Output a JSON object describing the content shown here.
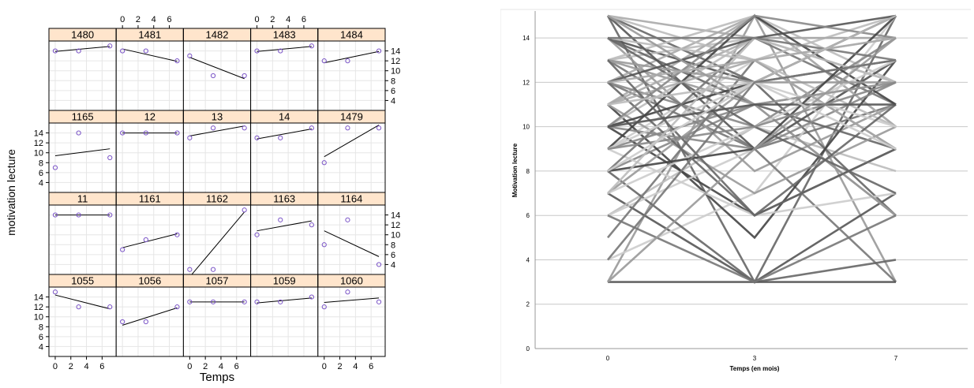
{
  "colors": {
    "strip_bg": "#ffe5cc",
    "point": "#7b55c7",
    "grid_left": "#e6e6e6",
    "grid_right": "#c8c8c8"
  },
  "chart_data": [
    {
      "type": "scatter",
      "layout": "trellis-4x5",
      "xlabel": "Temps",
      "ylabel": "motivation lecture",
      "x_ticks": [
        0,
        2,
        4,
        6
      ],
      "y_ticks": [
        4,
        6,
        8,
        10,
        12,
        14
      ],
      "xlim": [
        -0.4,
        7.4
      ],
      "ylim": [
        2,
        16
      ],
      "panels": [
        {
          "id": "1480",
          "x": [
            0,
            3,
            7
          ],
          "y": [
            14,
            14,
            15
          ],
          "fit": [
            13.9,
            14.9
          ]
        },
        {
          "id": "1481",
          "x": [
            0,
            3,
            7
          ],
          "y": [
            14,
            14,
            12
          ],
          "fit": [
            14.4,
            11.9
          ]
        },
        {
          "id": "1482",
          "x": [
            0,
            3,
            7
          ],
          "y": [
            13,
            9,
            9
          ],
          "fit": [
            12.7,
            8.4
          ]
        },
        {
          "id": "1483",
          "x": [
            0,
            3,
            7
          ],
          "y": [
            14,
            14,
            15
          ],
          "fit": [
            13.9,
            14.9
          ]
        },
        {
          "id": "1484",
          "x": [
            0,
            3,
            7
          ],
          "y": [
            12,
            12,
            14
          ],
          "fit": [
            11.6,
            13.9
          ]
        },
        {
          "id": "1165",
          "x": [
            0,
            3,
            7
          ],
          "y": [
            7,
            14,
            9
          ],
          "fit": [
            9.4,
            10.8
          ]
        },
        {
          "id": "12",
          "x": [
            0,
            3,
            7
          ],
          "y": [
            14,
            14,
            14
          ],
          "fit": [
            14,
            14
          ]
        },
        {
          "id": "13",
          "x": [
            0,
            3,
            7
          ],
          "y": [
            13,
            15,
            15
          ],
          "fit": [
            13.4,
            15.4
          ]
        },
        {
          "id": "14",
          "x": [
            0,
            3,
            7
          ],
          "y": [
            13,
            13,
            15
          ],
          "fit": [
            12.8,
            14.8
          ]
        },
        {
          "id": "1479",
          "x": [
            0,
            3,
            7
          ],
          "y": [
            8,
            15,
            15
          ],
          "fit": [
            9.2,
            15.6
          ]
        },
        {
          "id": "11",
          "x": [
            0,
            3,
            7
          ],
          "y": [
            14,
            14,
            14
          ],
          "fit": [
            14,
            14
          ]
        },
        {
          "id": "1161",
          "x": [
            0,
            3,
            7
          ],
          "y": [
            7,
            9,
            10
          ],
          "fit": [
            7.4,
            10.2
          ]
        },
        {
          "id": "1162",
          "x": [
            0,
            3,
            7
          ],
          "y": [
            3,
            3,
            15
          ],
          "fit": [
            1.5,
            14.6
          ]
        },
        {
          "id": "1163",
          "x": [
            0,
            3,
            7
          ],
          "y": [
            10,
            13,
            12
          ],
          "fit": [
            10.8,
            12.8
          ]
        },
        {
          "id": "1164",
          "x": [
            0,
            3,
            7
          ],
          "y": [
            8,
            13,
            4
          ],
          "fit": [
            10.8,
            5.6
          ]
        },
        {
          "id": "1055",
          "x": [
            0,
            3,
            7
          ],
          "y": [
            15,
            12,
            12
          ],
          "fit": [
            14.4,
            11.6
          ]
        },
        {
          "id": "1056",
          "x": [
            0,
            3,
            7
          ],
          "y": [
            9,
            9,
            12
          ],
          "fit": [
            8.3,
            11.8
          ]
        },
        {
          "id": "1057",
          "x": [
            0,
            3,
            7
          ],
          "y": [
            13,
            13,
            13
          ],
          "fit": [
            13,
            13
          ]
        },
        {
          "id": "1059",
          "x": [
            0,
            3,
            7
          ],
          "y": [
            13,
            13,
            14
          ],
          "fit": [
            12.8,
            13.8
          ]
        },
        {
          "id": "1060",
          "x": [
            0,
            3,
            7
          ],
          "y": [
            12,
            15,
            13
          ],
          "fit": [
            12.9,
            13.8
          ]
        }
      ]
    },
    {
      "type": "line",
      "xlabel": "Temps (en mois)",
      "ylabel": "Motivation lecture",
      "x": [
        0,
        3,
        7
      ],
      "x_ticks": [
        0,
        3,
        7
      ],
      "y_ticks": [
        0,
        2,
        4,
        6,
        8,
        10,
        12,
        14
      ],
      "ylim": [
        0,
        15
      ],
      "grid": true,
      "series": [
        {
          "values": [
            15,
            3,
            15
          ],
          "gray": "#666"
        },
        {
          "values": [
            3,
            15,
            3
          ],
          "gray": "#999"
        },
        {
          "values": [
            14,
            12,
            13
          ],
          "gray": "#555"
        },
        {
          "values": [
            13,
            14,
            12
          ],
          "gray": "#bbb"
        },
        {
          "values": [
            12,
            9,
            11
          ],
          "gray": "#777"
        },
        {
          "values": [
            11,
            15,
            10
          ],
          "gray": "#aaa"
        },
        {
          "values": [
            10,
            6,
            9
          ],
          "gray": "#444"
        },
        {
          "values": [
            9,
            13,
            14
          ],
          "gray": "#ccc"
        },
        {
          "values": [
            8,
            11,
            12
          ],
          "gray": "#888"
        },
        {
          "values": [
            7,
            3,
            7
          ],
          "gray": "#555"
        },
        {
          "values": [
            6,
            10,
            8
          ],
          "gray": "#bbb"
        },
        {
          "values": [
            4,
            7,
            15
          ],
          "gray": "#ccc"
        },
        {
          "values": [
            15,
            12,
            6
          ],
          "gray": "#666"
        },
        {
          "values": [
            14,
            8,
            11
          ],
          "gray": "#999"
        },
        {
          "values": [
            13,
            9,
            3
          ],
          "gray": "#777"
        },
        {
          "values": [
            12,
            15,
            10
          ],
          "gray": "#aaa"
        },
        {
          "values": [
            11,
            5,
            13
          ],
          "gray": "#444"
        },
        {
          "values": [
            10,
            14,
            12
          ],
          "gray": "#bbb"
        },
        {
          "values": [
            9,
            11,
            6
          ],
          "gray": "#888"
        },
        {
          "values": [
            8,
            3,
            4
          ],
          "gray": "#666"
        },
        {
          "values": [
            7,
            12,
            15
          ],
          "gray": "#999"
        },
        {
          "values": [
            6,
            9,
            13
          ],
          "gray": "#ccc"
        },
        {
          "values": [
            5,
            13,
            9
          ],
          "gray": "#777"
        },
        {
          "values": [
            3,
            3,
            3
          ],
          "gray": "#555"
        },
        {
          "values": [
            15,
            14,
            14
          ],
          "gray": "#aaa"
        },
        {
          "values": [
            14,
            11,
            9
          ],
          "gray": "#666"
        },
        {
          "values": [
            13,
            15,
            12
          ],
          "gray": "#bbb"
        },
        {
          "values": [
            12,
            10,
            14
          ],
          "gray": "#888"
        },
        {
          "values": [
            11,
            7,
            10
          ],
          "gray": "#999"
        },
        {
          "values": [
            10,
            12,
            15
          ],
          "gray": "#444"
        },
        {
          "values": [
            9,
            6,
            7
          ],
          "gray": "#ccc"
        },
        {
          "values": [
            8,
            14,
            11
          ],
          "gray": "#777"
        },
        {
          "values": [
            15,
            9,
            13
          ],
          "gray": "#555"
        },
        {
          "values": [
            14,
            13,
            15
          ],
          "gray": "#bbb"
        },
        {
          "values": [
            13,
            11,
            6
          ],
          "gray": "#999"
        },
        {
          "values": [
            12,
            6,
            9
          ],
          "gray": "#666"
        },
        {
          "values": [
            11,
            14,
            14
          ],
          "gray": "#aaa"
        },
        {
          "values": [
            10,
            9,
            12
          ],
          "gray": "#888"
        },
        {
          "values": [
            9,
            15,
            11
          ],
          "gray": "#444"
        },
        {
          "values": [
            7,
            10,
            13
          ],
          "gray": "#ccc"
        },
        {
          "values": [
            6,
            3,
            6
          ],
          "gray": "#777"
        },
        {
          "values": [
            15,
            13,
            10
          ],
          "gray": "#bbb"
        },
        {
          "values": [
            14,
            10,
            7
          ],
          "gray": "#666"
        },
        {
          "values": [
            13,
            12,
            12
          ],
          "gray": "#999"
        },
        {
          "values": [
            12,
            14,
            15
          ],
          "gray": "#555"
        },
        {
          "values": [
            11,
            13,
            9
          ],
          "gray": "#aaa"
        },
        {
          "values": [
            10,
            15,
            14
          ],
          "gray": "#888"
        },
        {
          "values": [
            9,
            12,
            10
          ],
          "gray": "#ccc"
        },
        {
          "values": [
            8,
            9,
            15
          ],
          "gray": "#444"
        },
        {
          "values": [
            7,
            14,
            12
          ],
          "gray": "#bbb"
        },
        {
          "values": [
            15,
            11,
            12
          ],
          "gray": "#999"
        },
        {
          "values": [
            14,
            14,
            13
          ],
          "gray": "#777"
        },
        {
          "values": [
            13,
            6,
            11
          ],
          "gray": "#666"
        },
        {
          "values": [
            12,
            13,
            14
          ],
          "gray": "#aaa"
        },
        {
          "values": [
            11,
            12,
            15
          ],
          "gray": "#bbb"
        },
        {
          "values": [
            10,
            11,
            11
          ],
          "gray": "#555"
        },
        {
          "values": [
            9,
            10,
            12
          ],
          "gray": "#888"
        },
        {
          "values": [
            8,
            12,
            9
          ],
          "gray": "#ccc"
        },
        {
          "values": [
            3,
            9,
            14
          ],
          "gray": "#999"
        },
        {
          "values": [
            4,
            12,
            13
          ],
          "gray": "#777"
        }
      ]
    }
  ]
}
